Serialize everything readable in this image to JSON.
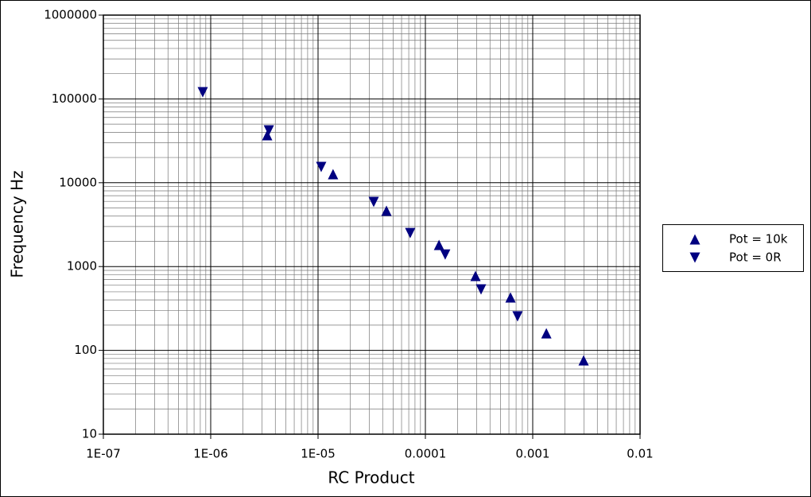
{
  "chart_data": {
    "type": "scatter",
    "xlabel": "RC Product",
    "ylabel": "Frequency Hz",
    "xscale": "log",
    "yscale": "log",
    "xlim": [
      1e-07,
      0.01
    ],
    "ylim": [
      10,
      1000000
    ],
    "xticks": [
      {
        "value": 1e-07,
        "label": "1E-07"
      },
      {
        "value": 1e-06,
        "label": "1E-06"
      },
      {
        "value": 1e-05,
        "label": "1E-05"
      },
      {
        "value": 0.0001,
        "label": "0.0001"
      },
      {
        "value": 0.001,
        "label": "0.001"
      },
      {
        "value": 0.01,
        "label": "0.01"
      }
    ],
    "yticks": [
      10,
      100,
      1000,
      10000,
      100000,
      1000000
    ],
    "grid": true,
    "minor_grid": true,
    "legend": "right",
    "series": [
      {
        "name": "Pot = 10k",
        "color": "#000080",
        "marker": "triangle-up",
        "x": [
          3.36e-06,
          1.38e-05,
          4.34e-05,
          0.000134,
          0.000293,
          0.000621,
          0.00134,
          0.00298
        ],
        "values": [
          36900,
          12650,
          4640,
          1810,
          773,
          428,
          160,
          76
        ]
      },
      {
        "name": "Pot = 0R",
        "color": "#000080",
        "marker": "triangle-down",
        "x": [
          8.43e-07,
          3.48e-06,
          1.07e-05,
          3.3e-05,
          7.22e-05,
          0.000153,
          0.00033,
          0.000722
        ],
        "values": [
          120000,
          42100,
          15400,
          5890,
          2510,
          1390,
          533,
          254
        ]
      }
    ]
  }
}
